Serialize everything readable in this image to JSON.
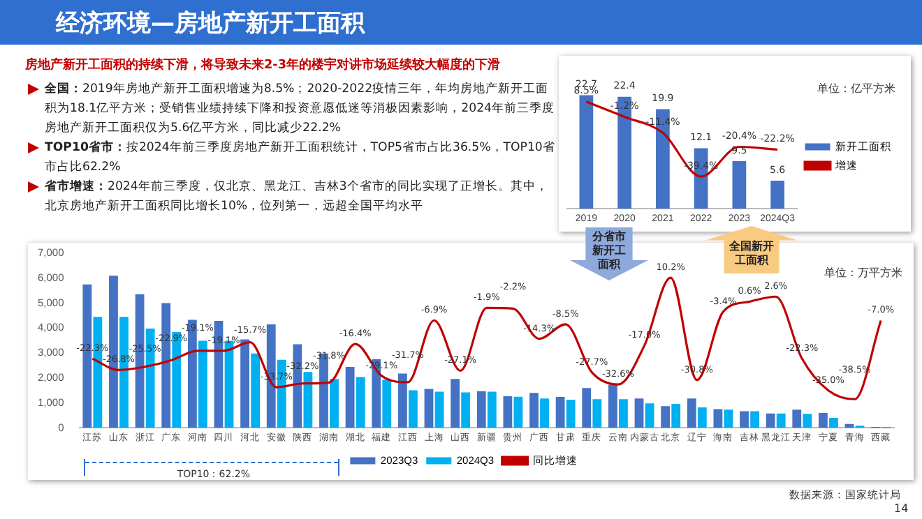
{
  "chart_data": [
    {
      "type": "other",
      "title": "经济环境—房地产新开工面积",
      "subtitle": "房地产新开工面积的持续下滑，将导致未来2-3年的楼宇对讲市场延续较大幅度的下滑",
      "annotations": [
        "全国：2019年房地产新开工面积增速为8.5%；2020-2022疫情三年，年均房地产新开工面积为18.1亿平方米；受销售业绩持续下降和投资意愿低迷等消极因素影响，2024年前三季度房地产新开工面积仅为5.6亿平方米，同比减少22.2%",
        "TOP10省市：按2024年前三季度房地产新开工面积统计，TOP5省市占比36.5%，TOP10省市占比62.2%",
        "省市增速：2024年前三季度，仅北京、黑龙江、吉林3个省市的同比实现了正增长。其中，北京房地产新开工面积同比增长10%，位列第一，远超全国平均水平",
        "分省市新开工面积",
        "全国新开工面积",
        "14"
      ]
    },
    {
      "type": "bar",
      "categories": [
        "2019",
        "2020",
        "2021",
        "2022",
        "2023",
        "2024Q3"
      ],
      "series": [
        {
          "name": "新开工面积",
          "color": "#4472c4",
          "values": [
            22.7,
            22.4,
            19.9,
            12.1,
            9.5,
            5.6
          ],
          "value_labels": [
            "22.7",
            "22.4",
            "19.9",
            "12.1",
            "9.5",
            "5.6"
          ]
        },
        {
          "name": "增速",
          "type": "line",
          "axis": "y2",
          "color": "#c00000",
          "values": [
            8.5,
            -1.2,
            -11.4,
            -39.4,
            -20.4,
            -22.2
          ],
          "value_labels": [
            "8.5%",
            "-1.2%",
            "-11.4%",
            "-39.4%",
            "-20.4%",
            "-22.2%"
          ]
        }
      ],
      "tick_labels": "x",
      "grid": false,
      "legend": "right",
      "marker": "none",
      "annotations": [
        "单位：亿平方米"
      ]
    },
    {
      "type": "bar",
      "categories": [
        "江苏",
        "山东",
        "浙江",
        "广东",
        "河南",
        "四川",
        "河北",
        "安徽",
        "陕西",
        "湖南",
        "湖北",
        "福建",
        "江西",
        "上海",
        "山西",
        "新疆",
        "贵州",
        "广西",
        "甘肃",
        "重庆",
        "云南",
        "内蒙古",
        "北京",
        "辽宁",
        "海南",
        "吉林",
        "黑龙江",
        "天津",
        "宁夏",
        "青海",
        "西藏"
      ],
      "series": [
        {
          "name": "2023Q3",
          "color": "#4472c4",
          "values": [
            5750,
            6100,
            5360,
            5000,
            4330,
            4290,
            3550,
            4150,
            3350,
            2980,
            2440,
            2750,
            2180,
            1560,
            1960,
            1470,
            1270,
            1400,
            1240,
            1600,
            1730,
            1180,
            870,
            1180,
            750,
            670,
            580,
            730,
            600,
            160,
            40
          ]
        },
        {
          "name": "2024Q3",
          "color": "#00b0f0",
          "values": [
            4450,
            4450,
            3980,
            3840,
            3490,
            3490,
            2980,
            2730,
            2240,
            1960,
            2040,
            1930,
            1510,
            1450,
            1420,
            1450,
            1250,
            1180,
            1130,
            1150,
            1150,
            980,
            960,
            820,
            730,
            670,
            580,
            560,
            400,
            90,
            40
          ]
        },
        {
          "name": "同比增速",
          "type": "line",
          "axis": "y2",
          "color": "#c00000",
          "values": [
            -22.3,
            -26.8,
            -25.5,
            -22.9,
            -19.1,
            -19.1,
            -15.7,
            -33.7,
            -32.2,
            -31.8,
            -16.4,
            -29.1,
            -31.7,
            -6.9,
            -27.1,
            -1.9,
            -2.2,
            -14.3,
            -8.5,
            -27.7,
            -32.6,
            -17.0,
            10.2,
            -30.8,
            -3.4,
            0.6,
            2.6,
            -22.3,
            -35.0,
            -38.5,
            -7.0
          ],
          "value_labels": [
            "-22.3%",
            "-26.8%",
            "-25.5%",
            "-22.9%",
            "-19.1%",
            "-19.1%",
            "-15.7%",
            "-33.7%",
            "-32.2%",
            "-31.8%",
            "-16.4%",
            "-29.1%",
            "-31.7%",
            "-6.9%",
            "-27.1%",
            "-1.9%",
            "-2.2%",
            "-14.3%",
            "-8.5%",
            "-27.7%",
            "-32.6%",
            "-17.0%",
            "10.2%",
            "-30.8%",
            "-3.4%",
            "0.6%",
            "2.6%",
            "-22.3%",
            "-35.0%",
            "-38.5%",
            "-7.0%"
          ]
        }
      ],
      "ylim": [
        0,
        7000
      ],
      "yticks": [
        0,
        {
          "value": 1000,
          "label": "1,000"
        },
        {
          "value": 2000,
          "label": "2,000"
        },
        {
          "value": 3000,
          "label": "3,000"
        },
        {
          "value": 4000,
          "label": "4,000"
        },
        {
          "value": 5000,
          "label": "5,000"
        },
        {
          "value": 6000,
          "label": "6,000"
        },
        {
          "value": 7000,
          "label": "7,000"
        }
      ],
      "grid": false,
      "legend": "bottom",
      "marker": "none",
      "annotations": [
        "单位：万平方米",
        "TOP10：62.2%",
        "数据来源：国家统计局"
      ]
    }
  ]
}
